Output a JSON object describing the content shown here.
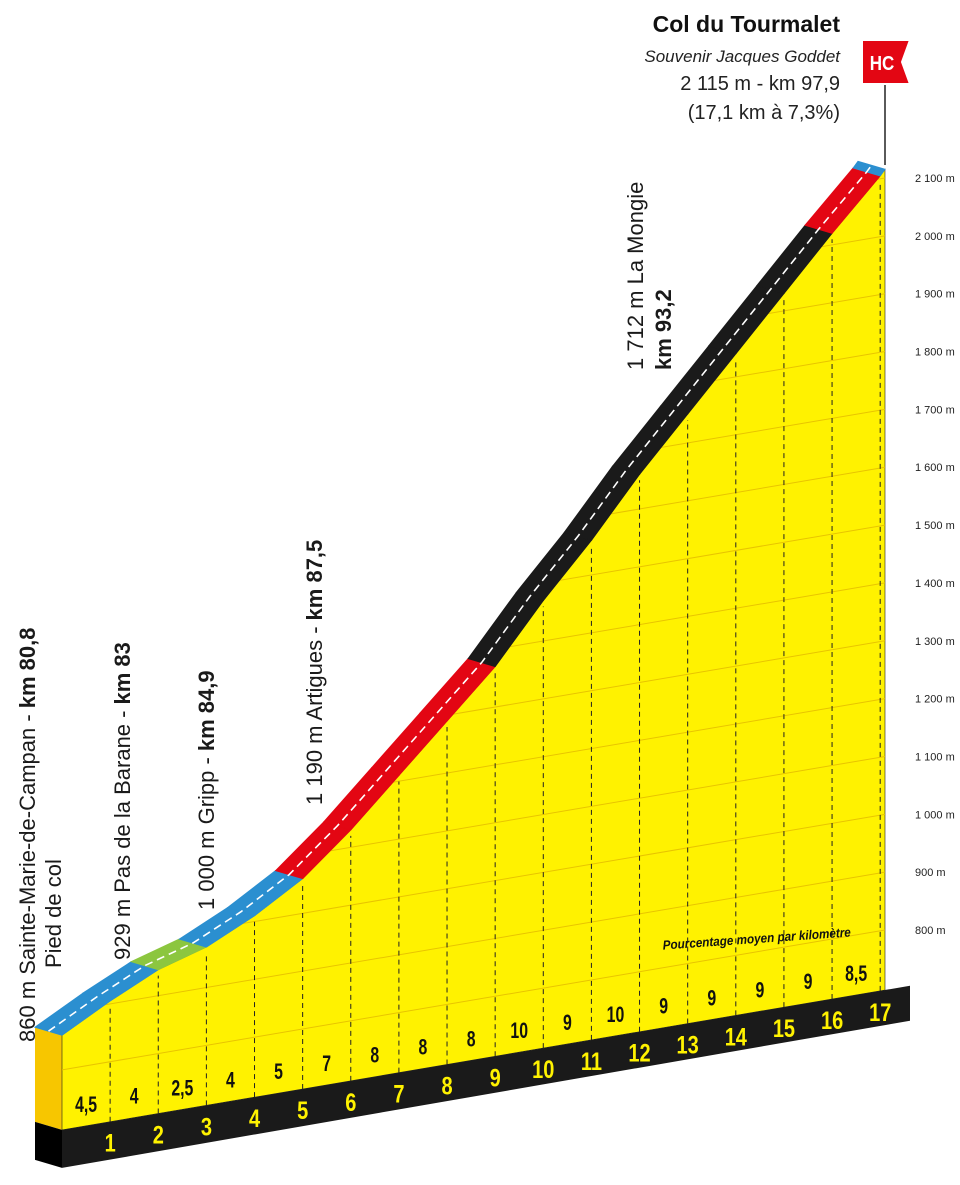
{
  "chart_data": {
    "type": "profile",
    "title": "Col du Tourmalet",
    "subtitle": "Souvenir Jacques Goddet",
    "summary": [
      "2 115 m - km 97,9",
      "(17,1 km à 7,3%)"
    ],
    "category": "HC",
    "start_elevation": 860,
    "summit_elevation": 2115,
    "xlim": [
      0,
      17.1
    ],
    "xticks": [
      1,
      2,
      3,
      4,
      5,
      6,
      7,
      8,
      9,
      10,
      11,
      12,
      13,
      14,
      15,
      16,
      17
    ],
    "values": [
      4.5,
      4,
      2.5,
      4,
      5,
      7,
      8,
      8,
      8,
      10,
      9,
      10,
      9,
      9,
      9,
      9,
      8.5
    ],
    "value_labels": [
      "4,5",
      "4",
      "2,5",
      "4",
      "5",
      "7",
      "8",
      "8",
      "8",
      "10",
      "9",
      "10",
      "9",
      "9",
      "9",
      "9",
      "8,5"
    ],
    "segment_colors": [
      "#2b8fd0",
      "#2b8fd0",
      "#8cc63f",
      "#2b8fd0",
      "#2b8fd0",
      "#e30613",
      "#e30613",
      "#e30613",
      "#e30613",
      "#1a1a1a",
      "#1a1a1a",
      "#1a1a1a",
      "#1a1a1a",
      "#1a1a1a",
      "#1a1a1a",
      "#1a1a1a",
      "#e30613",
      "#2b8fd0"
    ],
    "profile_color": "#fff200",
    "ylim": [
      800,
      2100
    ],
    "yticks": [
      {
        "value": 800,
        "label": "800 m"
      },
      {
        "value": 900,
        "label": "900 m"
      },
      {
        "value": 1000,
        "label": "1 000 m"
      },
      {
        "value": 1100,
        "label": "1 100 m"
      },
      {
        "value": 1200,
        "label": "1 200 m"
      },
      {
        "value": 1300,
        "label": "1 300 m"
      },
      {
        "value": 1400,
        "label": "1 400 m"
      },
      {
        "value": 1500,
        "label": "1 500 m"
      },
      {
        "value": 1600,
        "label": "1 600 m"
      },
      {
        "value": 1700,
        "label": "1 700 m"
      },
      {
        "value": 1800,
        "label": "1 800 m"
      },
      {
        "value": 1900,
        "label": "1 900 m"
      },
      {
        "value": 2000,
        "label": "2 000 m"
      },
      {
        "value": 2100,
        "label": "2 100 m"
      }
    ],
    "grid": true,
    "note": "Pourcentage moyen par kilomètre",
    "annotations": [
      {
        "text": "860 m Sainte-Marie-de-Campan -",
        "km": "km 80,8",
        "note": "Pied de col"
      },
      {
        "text": "929 m Pas de la Barane -",
        "km": "km 83"
      },
      {
        "text": "1 000 m Gripp -",
        "km": "km 84,9"
      },
      {
        "text": "1 190 m Artigues -",
        "km": "km 87,5"
      },
      {
        "text": "1 712 m La Mongie",
        "km": "km 93,2"
      }
    ]
  }
}
